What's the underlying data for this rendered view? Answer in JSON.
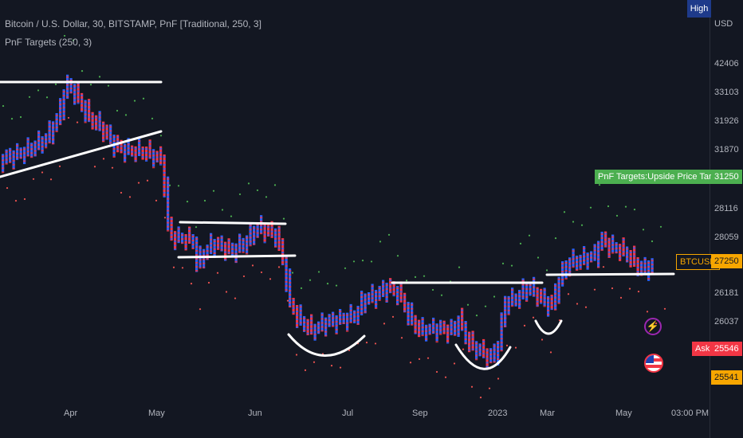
{
  "header": {
    "symbol_line": "Bitcoin / U.S. Dollar, 30, BITSTAMP, PnF [Traditional, 250, 3]",
    "indicator": "PnF Targets (250, 3)"
  },
  "price_scale": {
    "currency": "USD",
    "high_badge": "High",
    "ticks": [
      "42406",
      "33103",
      "31926",
      "31870",
      "28116",
      "28059",
      "26181",
      "26037"
    ]
  },
  "tags": {
    "target_label": "PnF Targets:Upside Price Targets",
    "target_value": "31250",
    "symbol_label": "BTCUSD",
    "last_price": "27250",
    "ask_label": "Ask",
    "ask_value": "25546",
    "bottom_value": "25541"
  },
  "time_axis": {
    "labels": [
      "Apr",
      "May",
      "Jun",
      "Jul",
      "Sep",
      "2023",
      "Mar",
      "May",
      "03:00 PM"
    ]
  },
  "colors": {
    "background": "#131722",
    "columns": [
      "#2962ff",
      "#f23645"
    ],
    "target_dots": [
      "#4caf50",
      "#ef5350"
    ],
    "trend_lines": "#ffffff",
    "target_tag": "#4caf50",
    "last_price_tag": "#f7a600",
    "ask_tag": "#f23645"
  },
  "chart_data": {
    "type": "point-and-figure",
    "box_size": 250,
    "reversal": 3,
    "visible_scale_ticks": [
      42406,
      33103,
      31926,
      31870,
      28116,
      28059,
      26181,
      26037
    ],
    "last_price": 27250,
    "upside_target": 31250,
    "ask": 25546
  }
}
